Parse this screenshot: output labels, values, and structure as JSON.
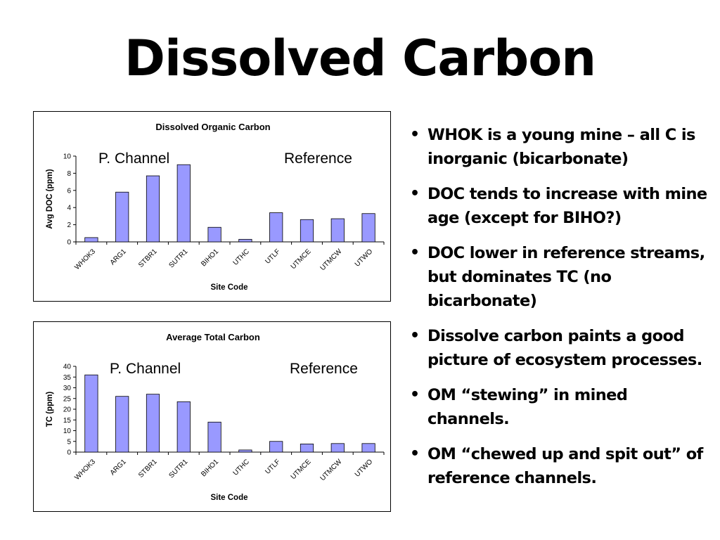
{
  "slide": {
    "title": "Dissolved Carbon"
  },
  "bullets": [
    "WHOK is a young mine – all C is inorganic (bicarbonate)",
    "DOC tends to increase with mine age (except for BIHO?)",
    "DOC lower in reference streams, but dominates TC (no bicarbonate)",
    "Dissolve carbon paints a good picture of ecosystem processes.",
    "OM “stewing” in mined channels.",
    "OM “chewed up and spit out” of reference channels."
  ],
  "bullet_symbol": "•",
  "colors": {
    "bar_fill": "#9999ff",
    "bar_stroke": "#000000"
  },
  "chart_data": [
    {
      "type": "bar",
      "title": "Dissolved Organic Carbon",
      "xlabel": "Site Code",
      "ylabel": "Avg DOC (ppm)",
      "categories": [
        "WHOK3",
        "ARG1",
        "STBR1",
        "SUTR1",
        "BIHO1",
        "UTHC",
        "UTLF",
        "UTMCE",
        "UTMCW",
        "UTWO"
      ],
      "values": [
        0.5,
        5.8,
        7.7,
        9.0,
        1.7,
        0.3,
        3.4,
        2.6,
        2.7,
        3.3
      ],
      "ylim": [
        0,
        10
      ],
      "yticks": [
        0,
        2,
        4,
        6,
        8,
        10
      ],
      "annotations": [
        "P. Channel",
        "Reference"
      ],
      "grid": false,
      "legend": "none"
    },
    {
      "type": "bar",
      "title": "Average Total Carbon",
      "xlabel": "Site Code",
      "ylabel": "TC (ppm)",
      "categories": [
        "WHOK3",
        "ARG1",
        "STBR1",
        "SUTR1",
        "BIHO1",
        "UTHC",
        "UTLF",
        "UTMCE",
        "UTMCW",
        "UTWO"
      ],
      "values": [
        36,
        26,
        27,
        23.5,
        14,
        1,
        5,
        3.8,
        4,
        4
      ],
      "ylim": [
        0,
        40
      ],
      "yticks": [
        0,
        5,
        10,
        15,
        20,
        25,
        30,
        35,
        40
      ],
      "annotations": [
        "P. Channel",
        "Reference"
      ],
      "grid": false,
      "legend": "none"
    }
  ]
}
